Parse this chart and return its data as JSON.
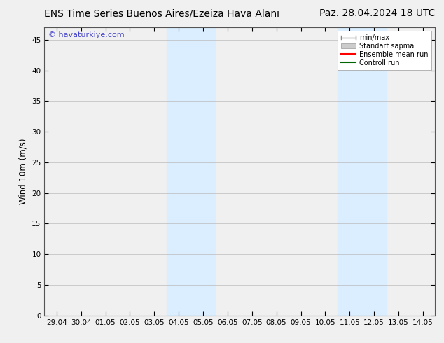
{
  "title_left": "ENS Time Series Buenos Aires/Ezeiza Hava Alanı",
  "title_right": "Paz. 28.04.2024 18 UTC",
  "ylabel": "Wind 10m (m/s)",
  "watermark": "© havaturkiye.com",
  "ylim": [
    0,
    47
  ],
  "yticks": [
    0,
    5,
    10,
    15,
    20,
    25,
    30,
    35,
    40,
    45
  ],
  "xtick_labels": [
    "29.04",
    "30.04",
    "01.05",
    "02.05",
    "03.05",
    "04.05",
    "05.05",
    "06.05",
    "07.05",
    "08.05",
    "09.05",
    "10.05",
    "11.05",
    "12.05",
    "13.05",
    "14.05"
  ],
  "shaded_bands": [
    {
      "label": "04.05",
      "idx0": 5,
      "idx1": 7
    },
    {
      "label": "11.05",
      "idx0": 12,
      "idx1": 14
    }
  ],
  "shaded_color": "#daeeff",
  "background_color": "#f0f0f0",
  "plot_bg_color": "#f0f0f0",
  "grid_color": "#bbbbbb",
  "legend_items": [
    {
      "label": "min/max",
      "color": "#aaaaaa",
      "style": "line_with_caps"
    },
    {
      "label": "Standart sapma",
      "color": "#cccccc",
      "style": "filled_box"
    },
    {
      "label": "Ensemble mean run",
      "color": "#ff0000",
      "style": "line"
    },
    {
      "label": "Controll run",
      "color": "#006600",
      "style": "line"
    }
  ],
  "title_fontsize": 10,
  "tick_fontsize": 7.5,
  "ylabel_fontsize": 8.5,
  "watermark_color": "#4444cc",
  "watermark_fontsize": 8
}
